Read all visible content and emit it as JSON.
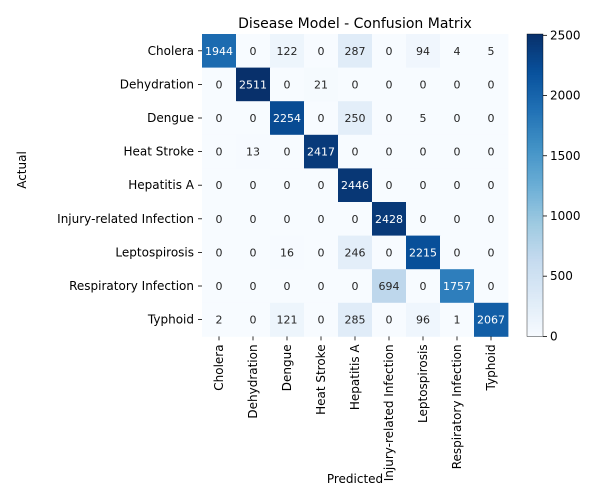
{
  "chart_data": {
    "type": "heatmap",
    "title": "Disease Model - Confusion Matrix",
    "xlabel": "Predicted",
    "ylabel": "Actual",
    "x_categories": [
      "Cholera",
      "Dehydration",
      "Dengue",
      "Heat Stroke",
      "Hepatitis A",
      "Injury-related Infection",
      "Leptospirosis",
      "Respiratory Infection",
      "Typhoid"
    ],
    "y_categories": [
      "Cholera",
      "Dehydration",
      "Dengue",
      "Heat Stroke",
      "Hepatitis A",
      "Injury-related Infection",
      "Leptospirosis",
      "Respiratory Infection",
      "Typhoid"
    ],
    "values": [
      [
        1944,
        0,
        122,
        0,
        287,
        0,
        94,
        4,
        5
      ],
      [
        0,
        2511,
        0,
        21,
        0,
        0,
        0,
        0,
        0
      ],
      [
        0,
        0,
        2254,
        0,
        250,
        0,
        5,
        0,
        0
      ],
      [
        0,
        13,
        0,
        2417,
        0,
        0,
        0,
        0,
        0
      ],
      [
        0,
        0,
        0,
        0,
        2446,
        0,
        0,
        0,
        0
      ],
      [
        0,
        0,
        0,
        0,
        0,
        2428,
        0,
        0,
        0
      ],
      [
        0,
        0,
        16,
        0,
        246,
        0,
        2215,
        0,
        0
      ],
      [
        0,
        0,
        0,
        0,
        0,
        694,
        0,
        1757,
        0
      ],
      [
        2,
        0,
        121,
        0,
        285,
        0,
        96,
        1,
        2067
      ]
    ],
    "colormap": "Blues",
    "colorbar": {
      "min": 0,
      "max": 2511,
      "ticks": [
        0,
        500,
        1000,
        1500,
        2000,
        2500
      ]
    },
    "annotations": true,
    "grid": false
  }
}
